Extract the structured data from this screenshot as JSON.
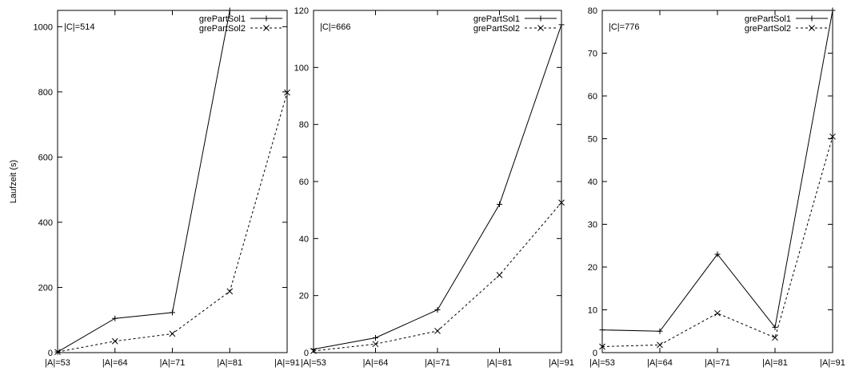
{
  "chart_data": [
    {
      "type": "line",
      "annotation": "|C|=514",
      "ylabel": "Laufzeit (s)",
      "xlabel": "",
      "categories": [
        "|A|=53",
        "|A|=64",
        "|A|=71",
        "|A|=81",
        "|A|=91"
      ],
      "ylim": [
        0,
        1050
      ],
      "yticks": [
        0,
        200,
        400,
        600,
        800,
        1000
      ],
      "series": [
        {
          "name": "grePartSol1",
          "values": [
            2,
            105,
            123,
            1050,
            null
          ],
          "style": "solid",
          "marker": "+"
        },
        {
          "name": "grePartSol2",
          "values": [
            2,
            35,
            58,
            188,
            798
          ],
          "style": "dashed",
          "marker": "x"
        }
      ]
    },
    {
      "type": "line",
      "annotation": "|C|=666",
      "ylabel": "",
      "xlabel": "",
      "categories": [
        "|A|=53",
        "|A|=64",
        "|A|=71",
        "|A|=81",
        "|A|=91"
      ],
      "ylim": [
        0,
        120
      ],
      "yticks": [
        0,
        20,
        40,
        60,
        80,
        100,
        120
      ],
      "series": [
        {
          "name": "grePartSol1",
          "values": [
            1.2,
            5.2,
            15,
            52,
            115
          ],
          "style": "solid",
          "marker": "+"
        },
        {
          "name": "grePartSol2",
          "values": [
            0.6,
            3.0,
            7.6,
            27.2,
            52.6
          ],
          "style": "dashed",
          "marker": "x"
        }
      ]
    },
    {
      "type": "line",
      "annotation": "|C|=776",
      "ylabel": "",
      "xlabel": "",
      "categories": [
        "|A|=53",
        "|A|=64",
        "|A|=71",
        "|A|=81",
        "|A|=91"
      ],
      "ylim": [
        0,
        80
      ],
      "yticks": [
        0,
        10,
        20,
        30,
        40,
        50,
        60,
        70,
        80
      ],
      "series": [
        {
          "name": "grePartSol1",
          "values": [
            5.3,
            5.0,
            23,
            5.9,
            80
          ],
          "style": "solid",
          "marker": "+"
        },
        {
          "name": "grePartSol2",
          "values": [
            1.4,
            1.8,
            9.2,
            3.5,
            50.5
          ],
          "style": "dashed",
          "marker": "x"
        }
      ]
    }
  ]
}
